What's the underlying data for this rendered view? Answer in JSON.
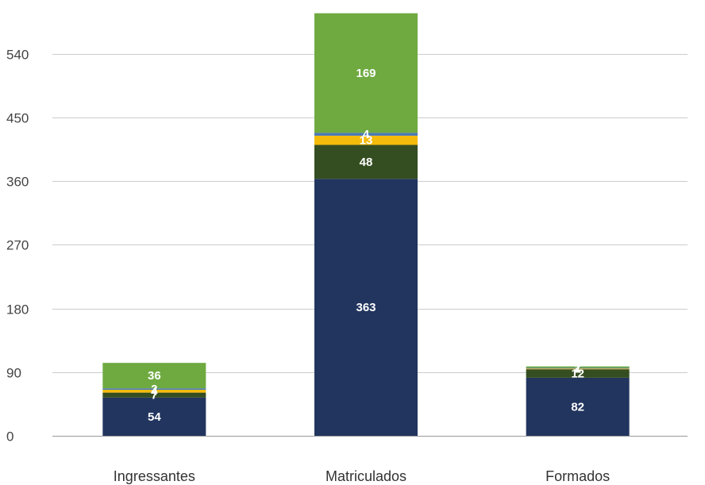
{
  "chart_data": {
    "type": "bar",
    "stacked": true,
    "title": "",
    "xlabel": "",
    "ylabel": "",
    "categories": [
      "Ingressantes",
      "Matriculados",
      "Formados"
    ],
    "ylim": [
      0,
      600
    ],
    "yticks": [
      0,
      90,
      180,
      270,
      360,
      450,
      540
    ],
    "grid": true,
    "legend": "none",
    "series": [
      {
        "color": "#22355f",
        "values": [
          54,
          363,
          82
        ]
      },
      {
        "color": "#354e21",
        "values": [
          7,
          48,
          12
        ]
      },
      {
        "color": "#f4bb0b",
        "values": [
          4,
          13,
          1
        ]
      },
      {
        "color": "#4a78b8",
        "values": [
          2,
          4,
          1
        ]
      },
      {
        "color": "#6faa41",
        "values": [
          36,
          169,
          2
        ]
      }
    ]
  }
}
